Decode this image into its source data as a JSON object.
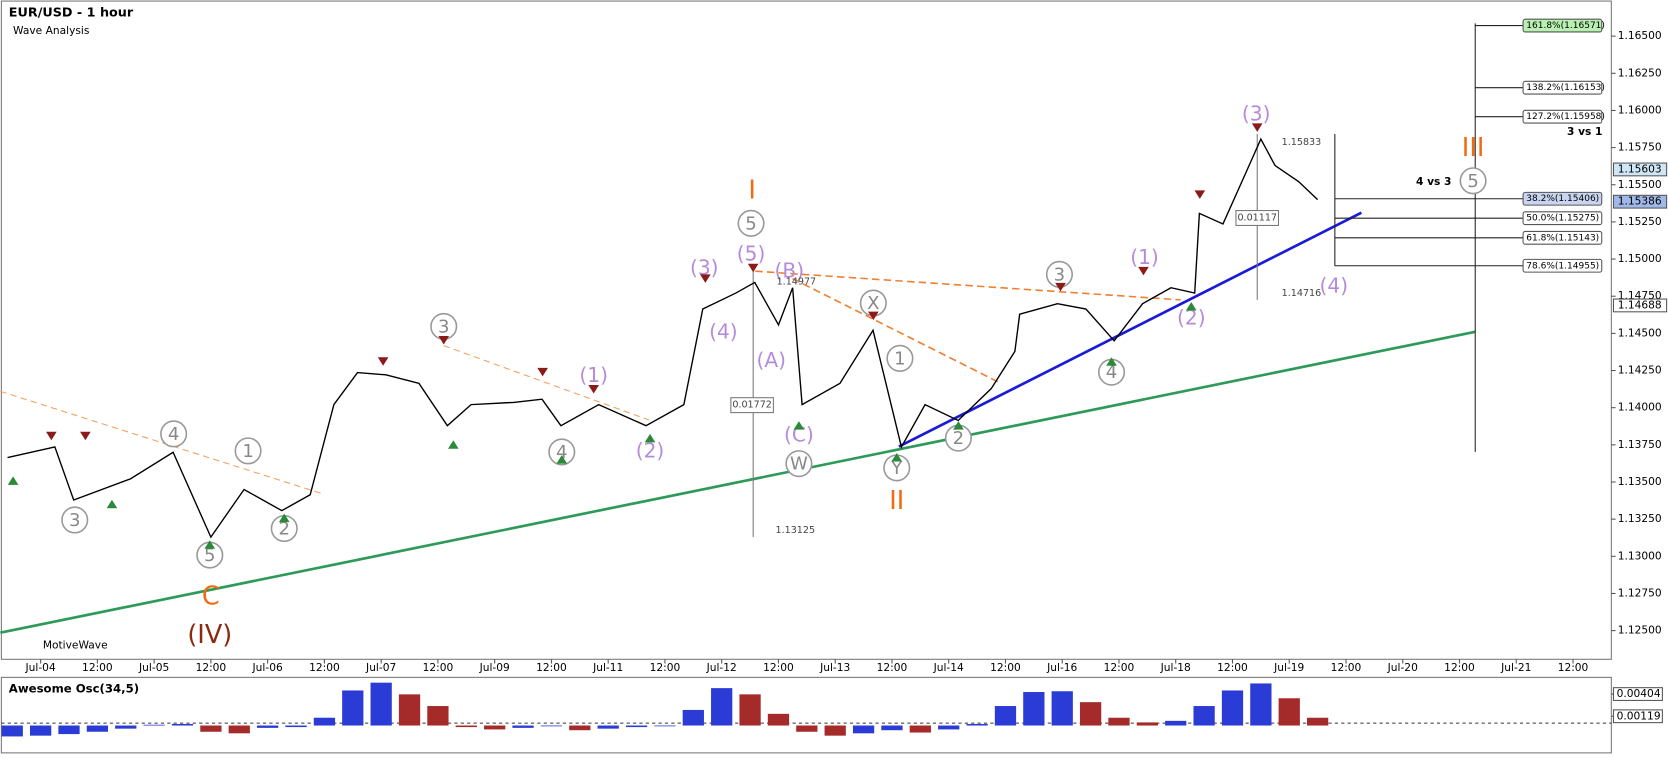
{
  "header": {
    "title": "EUR/USD - 1 hour",
    "subtitle": "Wave Analysis",
    "watermark": "MotiveWave"
  },
  "chart_data": [
    {
      "type": "line",
      "color": "#000000",
      "x": [
        -7,
        3,
        7,
        19,
        28,
        36,
        43,
        51,
        57,
        62,
        67,
        73,
        80,
        86,
        91,
        100,
        106,
        110,
        118,
        128,
        136,
        140,
        147,
        151,
        156,
        159,
        161,
        169,
        176,
        182,
        187,
        194,
        201,
        206,
        207,
        215,
        221,
        227,
        233,
        239,
        244,
        245,
        250,
        255,
        258,
        261,
        266,
        270
      ],
      "values": [
        1.13664,
        1.13736,
        1.13379,
        1.13521,
        1.137,
        1.13129,
        1.1345,
        1.13307,
        1.13414,
        1.14021,
        1.14236,
        1.14221,
        1.14164,
        1.13879,
        1.14021,
        1.14036,
        1.14057,
        1.13879,
        1.14021,
        1.13879,
        1.14021,
        1.14664,
        1.14771,
        1.14843,
        1.14557,
        1.14807,
        1.14021,
        1.14164,
        1.14521,
        1.13736,
        1.14021,
        1.13914,
        1.14129,
        1.14379,
        1.14629,
        1.147,
        1.14664,
        1.1445,
        1.147,
        1.14807,
        1.14771,
        1.15307,
        1.15236,
        1.15593,
        1.15807,
        1.15629,
        1.15521,
        1.154
      ],
      "xlim": [
        -8.3,
        332.1
      ],
      "xticks": [
        {
          "value": 0,
          "label": "Jul-04"
        },
        {
          "value": 12,
          "label": "12:00"
        },
        {
          "value": 24,
          "label": "Jul-05"
        },
        {
          "value": 36,
          "label": "12:00"
        },
        {
          "value": 48,
          "label": "Jul-06"
        },
        {
          "value": 60,
          "label": "12:00"
        },
        {
          "value": 72,
          "label": "Jul-07"
        },
        {
          "value": 84,
          "label": "12:00"
        },
        {
          "value": 96,
          "label": "Jul-09"
        },
        {
          "value": 108,
          "label": "12:00"
        },
        {
          "value": 120,
          "label": "Jul-11"
        },
        {
          "value": 132,
          "label": "12:00"
        },
        {
          "value": 144,
          "label": "Jul-12"
        },
        {
          "value": 156,
          "label": "12:00"
        },
        {
          "value": 168,
          "label": "Jul-13"
        },
        {
          "value": 180,
          "label": "12:00"
        },
        {
          "value": 192,
          "label": "Jul-14"
        },
        {
          "value": 204,
          "label": "12:00"
        },
        {
          "value": 216,
          "label": "Jul-16"
        },
        {
          "value": 228,
          "label": "12:00"
        },
        {
          "value": 240,
          "label": "Jul-18"
        },
        {
          "value": 252,
          "label": "12:00"
        },
        {
          "value": 264,
          "label": "Jul-19"
        },
        {
          "value": 276,
          "label": "12:00"
        },
        {
          "value": 288,
          "label": "Jul-20"
        },
        {
          "value": 300,
          "label": "12:00"
        },
        {
          "value": 312,
          "label": "Jul-21"
        },
        {
          "value": 324,
          "label": "12:00"
        }
      ],
      "ylim": [
        1.12307,
        1.16736
      ],
      "yticks": [
        {
          "value": 1.125,
          "label": "1.12500"
        },
        {
          "value": 1.1275,
          "label": "1.12750"
        },
        {
          "value": 1.13,
          "label": "1.13000"
        },
        {
          "value": 1.1325,
          "label": "1.13250"
        },
        {
          "value": 1.135,
          "label": "1.13500"
        },
        {
          "value": 1.1375,
          "label": "1.13750"
        },
        {
          "value": 1.14,
          "label": "1.14000"
        },
        {
          "value": 1.1425,
          "label": "1.14250"
        },
        {
          "value": 1.145,
          "label": "1.14500"
        },
        {
          "value": 1.1475,
          "label": "1.14750"
        },
        {
          "value": 1.15,
          "label": "1.15000"
        },
        {
          "value": 1.1525,
          "label": "1.15250"
        },
        {
          "value": 1.155,
          "label": "1.15500"
        },
        {
          "value": 1.1575,
          "label": "1.15750"
        },
        {
          "value": 1.16,
          "label": "1.16000"
        },
        {
          "value": 1.1625,
          "label": "1.16250"
        },
        {
          "value": 1.165,
          "label": "1.16500"
        }
      ],
      "price_labels": [
        {
          "value": 1.15603,
          "label": "1.15603",
          "color": "#cfe6f7"
        },
        {
          "value": 1.15386,
          "label": "1.15386",
          "color": "#9fb8e8"
        },
        {
          "value": 1.14688,
          "label": "1.14688",
          "color": "#ffffff"
        }
      ],
      "fib_levels": [
        {
          "value": 1.16571,
          "label": "161.8%(1.16571)",
          "color": "#b7f0b0"
        },
        {
          "value": 1.16153,
          "label": "138.2%(1.16153)",
          "color": "#ffffff"
        },
        {
          "value": 1.15958,
          "label": "127.2%(1.15958)",
          "color": "#ffffff"
        },
        {
          "value": 1.15406,
          "label": "38.2%(1.15406)",
          "color": "#c8d4f0"
        },
        {
          "value": 1.15275,
          "label": "50.0%(1.15275)",
          "color": "#ffffff"
        },
        {
          "value": 1.15143,
          "label": "61.8%(1.15143)",
          "color": "#ffffff"
        },
        {
          "value": 1.14955,
          "label": "78.6%(1.14955)",
          "color": "#ffffff"
        }
      ],
      "annotations": [
        "(3)",
        "(5)",
        "(3)",
        "(B)",
        "(4)",
        "(A)",
        "(C)",
        "(1)",
        "(2)",
        "(1)",
        "(2)",
        "(4)"
      ],
      "circled": [
        "5",
        "3",
        "4",
        "1",
        "3",
        "5",
        "2",
        "4",
        "W",
        "X",
        "1",
        "Y",
        "2",
        "3",
        "4",
        "5"
      ],
      "degree_labels": [
        "I",
        "II",
        "III",
        "C",
        "(IV)"
      ],
      "notes": [
        "4 vs 3",
        "3 vs 1",
        "1.15833",
        "1.14716",
        "1.14977",
        "1.13125",
        "0.01117",
        "0.01772"
      ]
    },
    {
      "type": "bar",
      "title": "Awesome Osc(34,5)",
      "up_color": "#2b3bd6",
      "down_color": "#a52a2a",
      "x": [
        -6,
        0,
        6,
        12,
        18,
        24,
        30,
        36,
        42,
        48,
        54,
        60,
        66,
        72,
        78,
        84,
        90,
        96,
        102,
        108,
        114,
        120,
        126,
        132,
        138,
        144,
        150,
        156,
        162,
        168,
        174,
        180,
        186,
        192,
        198,
        204,
        210,
        216,
        222,
        228,
        234,
        240,
        246,
        252,
        258,
        264,
        270
      ],
      "values": [
        -0.0014,
        -0.0013,
        -0.0011,
        -0.0008,
        -0.0004,
        0.0001,
        0.0002,
        -0.0008,
        -0.001,
        -0.0003,
        -0.0002,
        0.001,
        0.0045,
        0.0055,
        0.004,
        0.0025,
        -0.0002,
        -0.0005,
        -0.0003,
        -0.0001,
        -0.0006,
        -0.0004,
        -0.0002,
        -0.0001,
        0.002,
        0.0048,
        0.004,
        0.0015,
        -0.0008,
        -0.0013,
        -0.001,
        -0.0006,
        -0.0009,
        -0.0005,
        0.0002,
        0.0025,
        0.0043,
        0.0044,
        0.003,
        0.001,
        0.0004,
        0.0006,
        0.0025,
        0.0045,
        0.0054,
        0.0035,
        0.001
      ],
      "ylim": [
        -0.00351,
        0.00618
      ],
      "yticks": [
        0.00404,
        0.00119
      ]
    }
  ]
}
